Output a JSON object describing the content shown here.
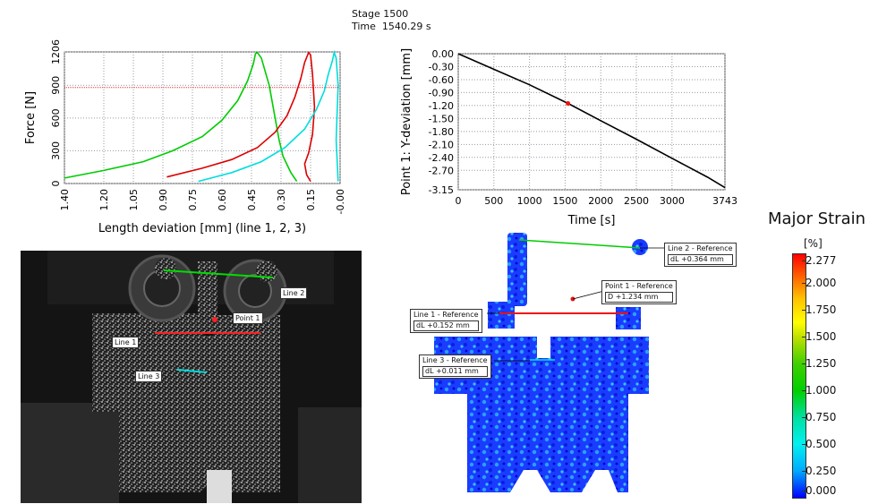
{
  "stage": {
    "label": "Stage 1500",
    "time": "Time  1540.29 s"
  },
  "chart_data": [
    {
      "type": "line",
      "xlabel": "Length deviation [mm] (line 1, 2, 3)",
      "ylabel": "Force [N]",
      "xlim": [
        1.4,
        0.0
      ],
      "ylim": [
        0,
        1206
      ],
      "x_ticks": [
        "1.40",
        "1.20",
        "1.05",
        "0.90",
        "0.75",
        "0.60",
        "0.45",
        "0.30",
        "0.15",
        "-0.00"
      ],
      "x_tick_values": [
        1.4,
        1.2,
        1.05,
        0.9,
        0.75,
        0.6,
        0.45,
        0.3,
        0.15,
        0.0
      ],
      "y_ticks": [
        "0",
        "300",
        "600",
        "900",
        "1206"
      ],
      "y_tick_values": [
        0,
        300,
        600,
        900,
        1206
      ],
      "current_force": 880,
      "series": [
        {
          "color": "#00cc00",
          "x": [
            1.4,
            1.2,
            1.0,
            0.85,
            0.7,
            0.6,
            0.52,
            0.47,
            0.44,
            0.43,
            0.42,
            0.4,
            0.36,
            0.33,
            0.31,
            0.29,
            0.25,
            0.22
          ],
          "y": [
            50,
            120,
            200,
            300,
            430,
            580,
            760,
            940,
            1100,
            1190,
            1200,
            1150,
            900,
            600,
            400,
            250,
            100,
            20
          ]
        },
        {
          "color": "#dd0000",
          "x": [
            0.88,
            0.7,
            0.55,
            0.42,
            0.33,
            0.27,
            0.23,
            0.2,
            0.18,
            0.16,
            0.15,
            0.14,
            0.13,
            0.14,
            0.16,
            0.18,
            0.17,
            0.15
          ],
          "y": [
            60,
            140,
            220,
            330,
            470,
            620,
            790,
            960,
            1110,
            1200,
            1180,
            1000,
            700,
            450,
            280,
            180,
            80,
            20
          ]
        },
        {
          "color": "#00dddd",
          "x": [
            0.72,
            0.55,
            0.4,
            0.28,
            0.18,
            0.12,
            0.08,
            0.06,
            0.04,
            0.03,
            0.02,
            0.01,
            0.02,
            0.01
          ],
          "y": [
            20,
            100,
            200,
            330,
            500,
            680,
            850,
            1000,
            1120,
            1200,
            1150,
            900,
            400,
            20
          ]
        }
      ]
    },
    {
      "type": "line",
      "xlabel": "Time [s]",
      "ylabel": "Point 1: Y-deviation [mm]",
      "xlim": [
        0,
        3743
      ],
      "ylim": [
        -3.15,
        0.0
      ],
      "x_ticks": [
        "0",
        "500",
        "1000",
        "1500",
        "2000",
        "2500",
        "3000",
        "3743"
      ],
      "x_tick_values": [
        0,
        500,
        1000,
        1500,
        2000,
        2500,
        3000,
        3743
      ],
      "y_ticks": [
        "0.00",
        "-0.30",
        "-0.60",
        "-0.90",
        "-1.20",
        "-1.50",
        "-1.80",
        "-2.10",
        "-2.40",
        "-2.70",
        "-3.15"
      ],
      "y_tick_values": [
        0.0,
        -0.3,
        -0.6,
        -0.9,
        -1.2,
        -1.5,
        -1.8,
        -2.1,
        -2.4,
        -2.7,
        -3.15
      ],
      "series": [
        {
          "color": "#000000",
          "x": [
            0,
            500,
            1000,
            1540,
            2000,
            2500,
            3000,
            3500,
            3743
          ],
          "y": [
            0.0,
            -0.36,
            -0.72,
            -1.15,
            -1.55,
            -1.98,
            -2.42,
            -2.86,
            -3.1
          ]
        }
      ],
      "marker": {
        "x": 1540,
        "y": -1.15
      }
    }
  ],
  "photo": {
    "labels": {
      "line2": "Line 2",
      "point1": "Point 1",
      "line1": "Line 1",
      "line3": "Line 3"
    }
  },
  "strain_map": {
    "line2": {
      "title": "Line 2 - Reference",
      "value": "dL  +0.364 mm"
    },
    "point1": {
      "title": "Point 1 - Reference",
      "value": "D  +1.234 mm"
    },
    "line1": {
      "title": "Line 1 - Reference",
      "value": "dL  +0.152 mm"
    },
    "line3": {
      "title": "Line 3 - Reference",
      "value": "dL  +0.011 mm"
    }
  },
  "legend": {
    "title": "Major Strain",
    "unit": "[%]",
    "ticks": [
      "2.277",
      "2.000",
      "1.750",
      "1.500",
      "1.250",
      "1.000",
      "0.750",
      "0.500",
      "0.250",
      "0.000"
    ],
    "colors": {
      "low": "#0000ff",
      "mid": "#00d000",
      "high": "#ff0000"
    }
  }
}
